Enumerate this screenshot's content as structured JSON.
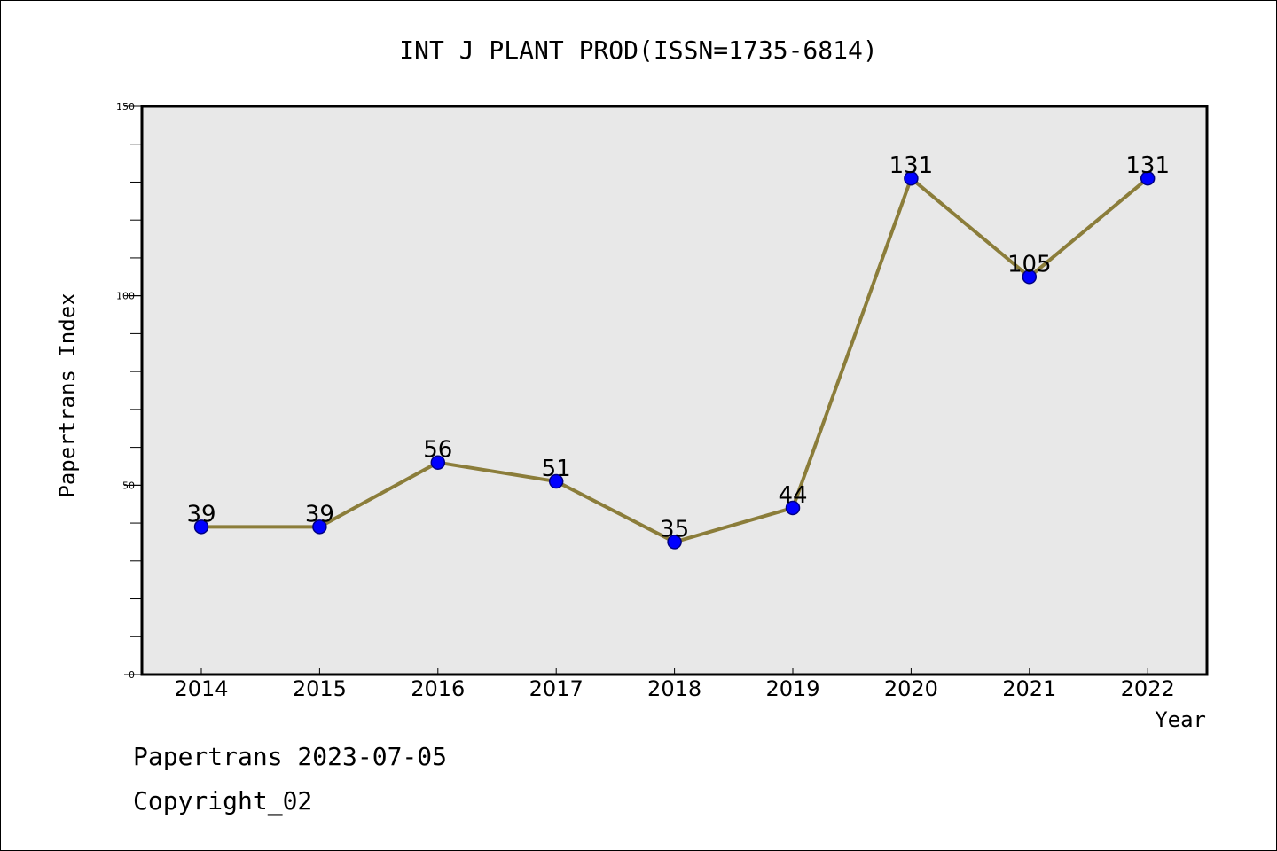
{
  "chart_data": {
    "type": "line",
    "title": "INT J PLANT PROD(ISSN=1735-6814)",
    "xlabel": "Year",
    "ylabel": "Papertrans Index",
    "categories": [
      "2014",
      "2015",
      "2016",
      "2017",
      "2018",
      "2019",
      "2020",
      "2021",
      "2022"
    ],
    "series": [
      {
        "values": [
          39,
          39,
          56,
          51,
          35,
          44,
          131,
          105,
          131
        ]
      }
    ],
    "data_labels": [
      "39",
      "39",
      "56",
      "51",
      "35",
      "44",
      "131",
      "105",
      "131"
    ],
    "ylim": [
      0,
      150
    ],
    "y_ticks": [
      {
        "value": 0,
        "label": "0"
      },
      {
        "value": 50,
        "label": "50"
      },
      {
        "value": 100,
        "label": "100"
      },
      {
        "value": 150,
        "label": "150"
      }
    ],
    "y_minor_step": 10,
    "grid": false,
    "colors": {
      "plot_background": "#e8e8e8",
      "line": "#8b7d3a",
      "marker_fill": "#0000ff",
      "marker_stroke": "#000080",
      "axis": "#000000"
    }
  },
  "footer": {
    "source": "Papertrans 2023-07-05",
    "copyright": "Copyright_02"
  }
}
